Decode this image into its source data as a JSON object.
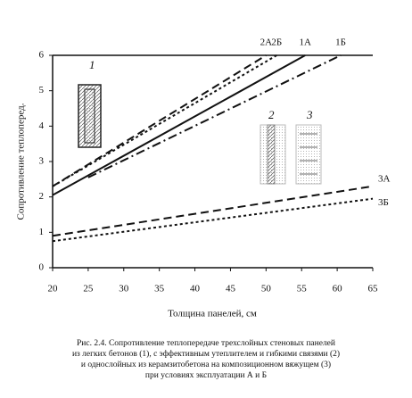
{
  "chart_data": {
    "type": "line",
    "ylabel": "Сопротивление теплоперед.",
    "xlabel": "Толщина панелей, см",
    "xlim": [
      20,
      65
    ],
    "xticks": [
      20,
      25,
      30,
      35,
      40,
      45,
      50,
      55,
      60,
      65
    ],
    "ylim": [
      0,
      6
    ],
    "yticks": [
      0,
      1,
      2,
      3,
      4,
      5,
      6
    ],
    "series": [
      {
        "name": "2А",
        "color": "#111111",
        "style": "dashed",
        "x": [
          20,
          50
        ],
        "values": [
          2.3,
          6
        ]
      },
      {
        "name": "2Б",
        "color": "#111111",
        "style": "dotted",
        "x": [
          20,
          51.5
        ],
        "values": [
          2.3,
          6
        ]
      },
      {
        "name": "1А",
        "color": "#111111",
        "style": "solid",
        "x": [
          20,
          55.5
        ],
        "values": [
          2.05,
          6
        ]
      },
      {
        "name": "1Б",
        "color": "#111111",
        "style": "dashdot",
        "x": [
          25,
          60.5
        ],
        "values": [
          2.55,
          6
        ]
      },
      {
        "name": "3А",
        "color": "#111111",
        "style": "dashed",
        "x": [
          20,
          65
        ],
        "values": [
          0.9,
          2.3
        ]
      },
      {
        "name": "3Б",
        "color": "#111111",
        "style": "dotted",
        "x": [
          20,
          65
        ],
        "values": [
          0.75,
          1.95
        ]
      }
    ],
    "annotations": [
      "1",
      "2",
      "3"
    ],
    "caption": [
      "Рис. 2.4. Сопротивление теплопередаче трехслойных стеновых панелей",
      "из легких бетонов (1), с эффективным утеплителем и гибкими связями (2)",
      "и однослойных из керамзитобетона на композиционном вяжущем (3)",
      "при условиях эксплуатации А и Б"
    ]
  }
}
